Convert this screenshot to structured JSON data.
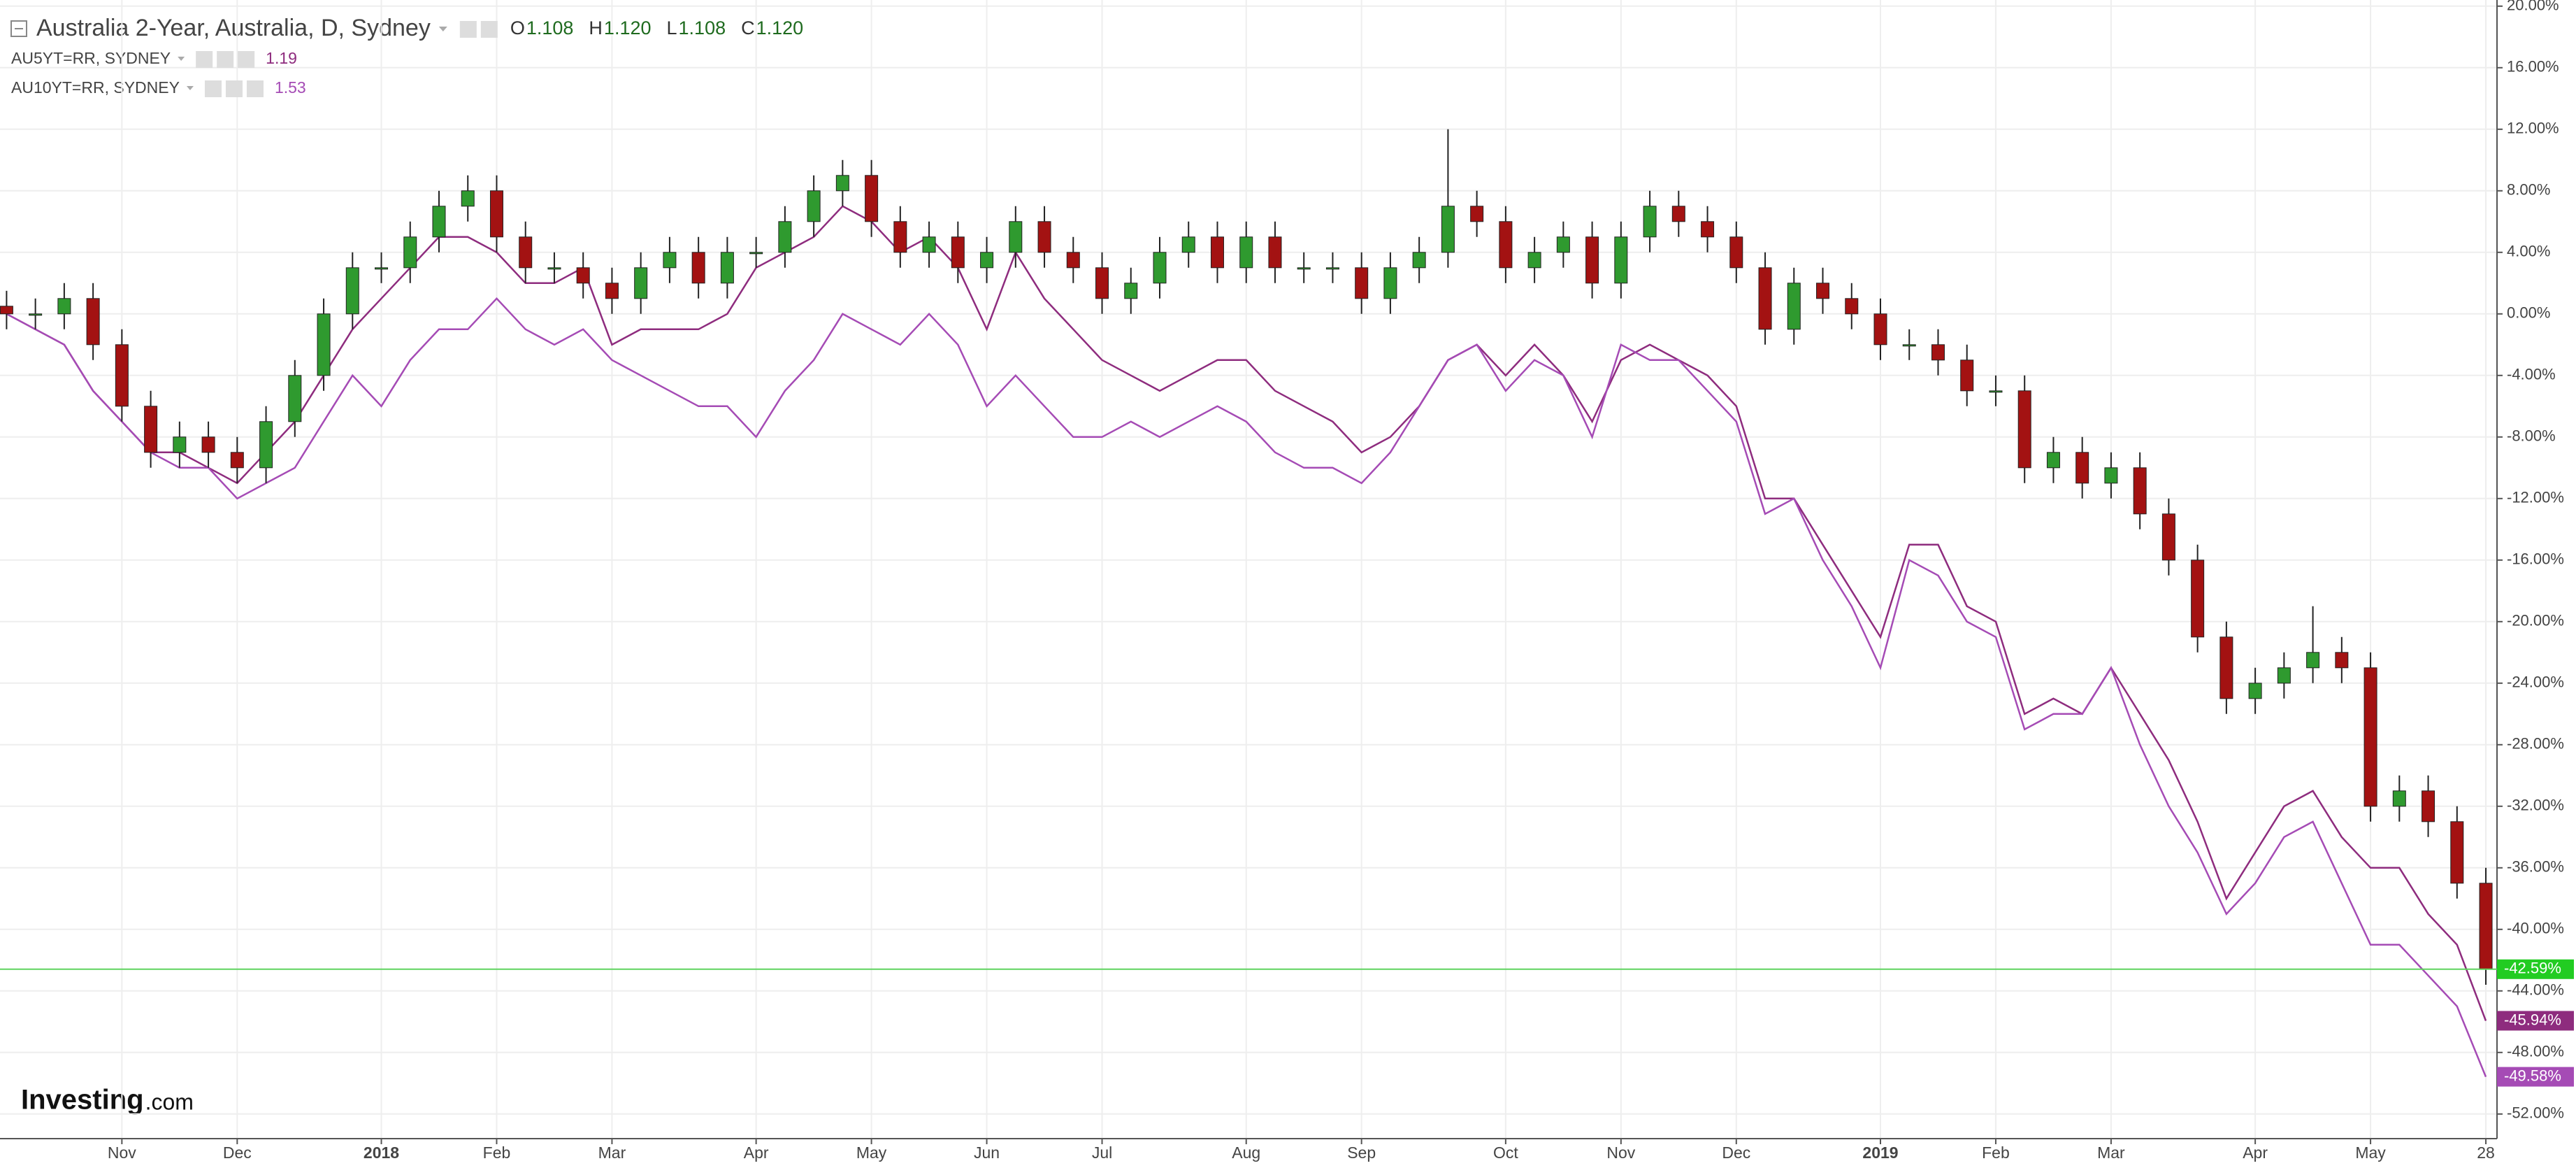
{
  "chart_data": {
    "type": "candlestick",
    "title": "Australia 2-Year, Australia, D, Sydney",
    "ohlc": [
      {
        "key": "O",
        "text": "1.108"
      },
      {
        "key": "H",
        "text": "1.120"
      },
      {
        "key": "L",
        "text": "1.108"
      },
      {
        "key": "C",
        "text": "1.120"
      }
    ],
    "categories": [
      null,
      null,
      null,
      null,
      "Nov",
      null,
      null,
      null,
      "Dec",
      null,
      null,
      null,
      null,
      "2018",
      null,
      null,
      null,
      "Feb",
      null,
      null,
      null,
      "Mar",
      null,
      null,
      null,
      null,
      "Apr",
      null,
      null,
      null,
      "May",
      null,
      null,
      null,
      "Jun",
      null,
      null,
      null,
      "Jul",
      null,
      null,
      null,
      null,
      "Aug",
      null,
      null,
      null,
      "Sep",
      null,
      null,
      null,
      null,
      "Oct",
      null,
      null,
      null,
      "Nov",
      null,
      null,
      null,
      "Dec",
      null,
      null,
      null,
      null,
      "2019",
      null,
      null,
      null,
      "Feb",
      null,
      null,
      null,
      "Mar",
      null,
      null,
      null,
      null,
      "Apr",
      null,
      null,
      null,
      "May",
      null,
      null,
      null,
      "28"
    ],
    "open": [
      0.5,
      0,
      0,
      1,
      -2,
      -6,
      -9,
      -8,
      -9,
      -10,
      -7,
      -4,
      0,
      3,
      3,
      5,
      7,
      8,
      5,
      3,
      3,
      2,
      1,
      3,
      4,
      2,
      4,
      4,
      6,
      8,
      9,
      6,
      4,
      5,
      3,
      4,
      6,
      4,
      3,
      1,
      2,
      4,
      5,
      3,
      5,
      3,
      3,
      3,
      1,
      3,
      4,
      7,
      6,
      3,
      4,
      5,
      2,
      5,
      7,
      6,
      5,
      3,
      -1,
      2,
      1,
      0,
      -2,
      -2,
      -3,
      -5,
      -5,
      -10,
      -9,
      -11,
      -10,
      -13,
      -16,
      -21,
      -25,
      -24,
      -23,
      -22,
      -23,
      -32,
      -31,
      -33,
      -37
    ],
    "high": [
      1.5,
      1,
      2,
      2,
      -1,
      -5,
      -7,
      -7,
      -8,
      -6,
      -3,
      1,
      4,
      4,
      6,
      8,
      9,
      9,
      6,
      4,
      4,
      3,
      4,
      5,
      5,
      5,
      5,
      7,
      9,
      10,
      10,
      7,
      6,
      6,
      5,
      7,
      7,
      5,
      4,
      3,
      5,
      6,
      6,
      6,
      6,
      4,
      4,
      4,
      4,
      5,
      12,
      8,
      7,
      5,
      6,
      6,
      6,
      8,
      8,
      7,
      6,
      4,
      3,
      3,
      2,
      1,
      -1,
      -1,
      -2,
      -4,
      -4,
      -8,
      -8,
      -9,
      -9,
      -12,
      -15,
      -20,
      -23,
      -22,
      -19,
      -21,
      -22,
      -30,
      -30,
      -32,
      -36
    ],
    "low": [
      -1,
      -1,
      -1,
      -3,
      -7,
      -10,
      -10,
      -10,
      -11,
      -11,
      -8,
      -5,
      -1,
      2,
      2,
      4,
      6,
      4,
      2,
      2,
      1,
      0,
      0,
      2,
      1,
      1,
      3,
      3,
      5,
      7,
      5,
      3,
      3,
      2,
      2,
      3,
      3,
      2,
      0,
      0,
      1,
      3,
      2,
      2,
      2,
      2,
      2,
      0,
      0,
      2,
      3,
      5,
      2,
      2,
      3,
      1,
      1,
      4,
      5,
      4,
      2,
      -2,
      -2,
      0,
      -1,
      -3,
      -3,
      -4,
      -6,
      -6,
      -11,
      -11,
      -12,
      -12,
      -14,
      -17,
      -22,
      -26,
      -26,
      -25,
      -24,
      -24,
      -33,
      -33,
      -34,
      -38,
      -43.6
    ],
    "close": [
      0,
      0,
      1,
      -2,
      -6,
      -9,
      -8,
      -9,
      -10,
      -7,
      -4,
      0,
      3,
      3,
      5,
      7,
      8,
      5,
      3,
      3,
      2,
      1,
      3,
      4,
      2,
      4,
      4,
      6,
      8,
      9,
      6,
      4,
      5,
      3,
      4,
      6,
      4,
      3,
      1,
      2,
      4,
      5,
      3,
      5,
      3,
      3,
      3,
      1,
      3,
      4,
      7,
      6,
      3,
      4,
      5,
      2,
      5,
      7,
      6,
      5,
      3,
      -1,
      2,
      1,
      0,
      -2,
      -2,
      -3,
      -5,
      -5,
      -10,
      -9,
      -11,
      -10,
      -13,
      -16,
      -21,
      -25,
      -24,
      -23,
      -22,
      -23,
      -32,
      -31,
      -33,
      -37,
      -42.59
    ],
    "last_close_label": "-42.59%",
    "up_color": "#2f9a2f",
    "down_color": "#a31212",
    "price_line_color": "#5fd35f",
    "series": [
      {
        "name": "AU5YT=RR, SYDNEY",
        "legend_value": "1.19",
        "color": "#8e2c7e",
        "last_value_label": "-45.94%",
        "values": [
          0,
          -1,
          -2,
          -5,
          -7,
          -9,
          -9,
          -10,
          -11,
          -9,
          -7,
          -4,
          -1,
          1,
          3,
          5,
          5,
          4,
          2,
          2,
          3,
          -2,
          -1,
          -1,
          -1,
          0,
          3,
          4,
          5,
          7,
          6,
          4,
          5,
          3,
          -1,
          4,
          1,
          -1,
          -3,
          -4,
          -5,
          -4,
          -3,
          -3,
          -5,
          -6,
          -7,
          -9,
          -8,
          -6,
          -3,
          -2,
          -4,
          -2,
          -4,
          -7,
          -3,
          -2,
          -3,
          -4,
          -6,
          -12,
          -12,
          -15,
          -18,
          -21,
          -15,
          -15,
          -19,
          -20,
          -26,
          -25,
          -26,
          -23,
          -26,
          -29,
          -33,
          -38,
          -35,
          -32,
          -31,
          -34,
          -36,
          -36,
          -39,
          -41,
          -45.94
        ]
      },
      {
        "name": "AU10YT=RR, SYDNEY",
        "legend_value": "1.53",
        "color": "#a54bb5",
        "last_value_label": "-49.58%",
        "values": [
          0,
          -1,
          -2,
          -5,
          -7,
          -9,
          -10,
          -10,
          -12,
          -11,
          -10,
          -7,
          -4,
          -6,
          -3,
          -1,
          -1,
          1,
          -1,
          -2,
          -1,
          -3,
          -4,
          -5,
          -6,
          -6,
          -8,
          -5,
          -3,
          0,
          -1,
          -2,
          0,
          -2,
          -6,
          -4,
          -6,
          -8,
          -8,
          -7,
          -8,
          -7,
          -6,
          -7,
          -9,
          -10,
          -10,
          -11,
          -9,
          -6,
          -3,
          -2,
          -5,
          -3,
          -4,
          -8,
          -2,
          -3,
          -3,
          -5,
          -7,
          -13,
          -12,
          -16,
          -19,
          -23,
          -16,
          -17,
          -20,
          -21,
          -27,
          -26,
          -26,
          -23,
          -28,
          -32,
          -35,
          -39,
          -37,
          -34,
          -33,
          -37,
          -41,
          -41,
          -43,
          -45,
          -49.58
        ]
      }
    ],
    "ylim": [
      -53.6,
      20.4
    ],
    "yticks": [
      {
        "value": 20,
        "label": "20.00%"
      },
      {
        "value": 16,
        "label": "16.00%"
      },
      {
        "value": 12,
        "label": "12.00%"
      },
      {
        "value": 8,
        "label": "8.00%"
      },
      {
        "value": 4,
        "label": "4.00%"
      },
      {
        "value": 0,
        "label": "0.00%"
      },
      {
        "value": -4,
        "label": "-4.00%"
      },
      {
        "value": -8,
        "label": "-8.00%"
      },
      {
        "value": -12,
        "label": "-12.00%"
      },
      {
        "value": -16,
        "label": "-16.00%"
      },
      {
        "value": -20,
        "label": "-20.00%"
      },
      {
        "value": -24,
        "label": "-24.00%"
      },
      {
        "value": -28,
        "label": "-28.00%"
      },
      {
        "value": -32,
        "label": "-32.00%"
      },
      {
        "value": -36,
        "label": "-36.00%"
      },
      {
        "value": -40,
        "label": "-40.00%"
      },
      {
        "value": -44,
        "label": "-44.00%"
      },
      {
        "value": -48,
        "label": "-48.00%"
      },
      {
        "value": -52,
        "label": "-52.00%"
      }
    ],
    "grid": true,
    "logo": {
      "brand": "Investing",
      "suffix": ".com"
    }
  }
}
